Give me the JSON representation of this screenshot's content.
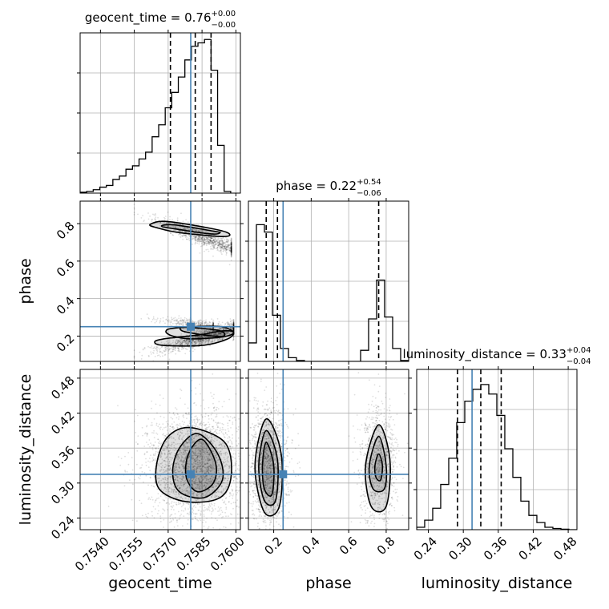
{
  "colors": {
    "truth": "#4682b4",
    "hist": "#000000",
    "grid": "#b0b0b0",
    "scatter": "#000000"
  },
  "chart_data": {
    "type": "corner",
    "parameters": [
      {
        "key": "geocent_time",
        "label": "geocent_time",
        "title_text": "geocent_time = 0.76",
        "title_sup": "+0.00",
        "title_sub": "−0.00",
        "range": [
          0.7531,
          0.7602
        ],
        "ticks": [
          0.754,
          0.7555,
          0.757,
          0.7585,
          0.76
        ],
        "tick_labels": [
          "0.7540",
          "0.7555",
          "0.7570",
          "0.7585",
          "0.7600"
        ],
        "truth": 0.758,
        "quantiles": [
          0.7571,
          0.7582,
          0.7589
        ],
        "hist": {
          "edges": [
            0.7531,
            0.75339,
            0.75368,
            0.75397,
            0.75426,
            0.75455,
            0.75484,
            0.75513,
            0.75542,
            0.75571,
            0.756,
            0.75629,
            0.75658,
            0.75687,
            0.75716,
            0.75745,
            0.75774,
            0.75803,
            0.75832,
            0.75861,
            0.7589,
            0.75919,
            0.75948,
            0.75977
          ],
          "counts": [
            0.005,
            0.01,
            0.02,
            0.035,
            0.045,
            0.08,
            0.1,
            0.14,
            0.16,
            0.2,
            0.24,
            0.33,
            0.4,
            0.5,
            0.59,
            0.68,
            0.78,
            0.86,
            0.88,
            0.9,
            0.72,
            0.28,
            0.01
          ]
        }
      },
      {
        "key": "phase",
        "label": "phase",
        "title_text": "phase = 0.22",
        "title_sup": "+0.54",
        "title_sub": "−0.06",
        "range": [
          0.065,
          0.92
        ],
        "ticks": [
          0.2,
          0.4,
          0.6,
          0.8
        ],
        "tick_labels": [
          "0.2",
          "0.4",
          "0.6",
          "0.8"
        ],
        "truth": 0.25,
        "quantiles": [
          0.16,
          0.22,
          0.76
        ],
        "hist": {
          "edges": [
            0.065,
            0.1077,
            0.1505,
            0.1932,
            0.236,
            0.2787,
            0.3215,
            0.3642,
            0.407,
            0.4497,
            0.4925,
            0.5352,
            0.578,
            0.6207,
            0.6635,
            0.7062,
            0.749,
            0.7917,
            0.8345,
            0.8772,
            0.92
          ],
          "counts": [
            0.1,
            0.74,
            0.7,
            0.25,
            0.07,
            0.02,
            0.005,
            0,
            0,
            0,
            0,
            0,
            0,
            0,
            0.06,
            0.23,
            0.44,
            0.24,
            0.07,
            0.005
          ]
        }
      },
      {
        "key": "luminosity_distance",
        "label": "luminosity_distance",
        "title_text": "luminosity_distance = 0.33",
        "title_sup": "+0.04",
        "title_sub": "−0.04",
        "range": [
          0.22,
          0.495
        ],
        "ticks": [
          0.24,
          0.3,
          0.36,
          0.42,
          0.48
        ],
        "tick_labels": [
          "0.24",
          "0.30",
          "0.36",
          "0.42",
          "0.48"
        ],
        "truth": 0.315,
        "quantiles": [
          0.29,
          0.33,
          0.365
        ],
        "hist": {
          "edges": [
            0.22,
            0.2337,
            0.2475,
            0.2612,
            0.275,
            0.2887,
            0.3025,
            0.3162,
            0.33,
            0.3437,
            0.3575,
            0.3712,
            0.385,
            0.3987,
            0.4125,
            0.4262,
            0.44,
            0.4537,
            0.4675,
            0.4812,
            0.495
          ],
          "counts": [
            0.01,
            0.04,
            0.09,
            0.19,
            0.3,
            0.45,
            0.54,
            0.59,
            0.61,
            0.57,
            0.48,
            0.34,
            0.22,
            0.12,
            0.06,
            0.03,
            0.01,
            0.005,
            0.002,
            0
          ]
        }
      }
    ],
    "pairs": [
      {
        "x": "geocent_time",
        "y": "phase",
        "modes": [
          {
            "type": "band",
            "x0": 0.7555,
            "y0": 0.86,
            "x1": 0.7598,
            "y1": 0.67,
            "sigma_along": 0.2,
            "sigma_perp": 0.022,
            "weight": 0.42
          },
          {
            "type": "band",
            "x0": 0.7555,
            "y0": 0.09,
            "x1": 0.7599,
            "y1": 0.24,
            "sigma_along": 0.2,
            "sigma_perp": 0.02,
            "weight": 0.58
          },
          {
            "type": "band",
            "x0": 0.7558,
            "y0": 0.3,
            "x1": 0.759,
            "y1": 0.255,
            "sigma_along": 0.2,
            "sigma_perp": 0.012,
            "weight": 0.12
          }
        ],
        "contours": [
          [
            [
              0.7573,
              0.793
            ],
            [
              0.759,
              0.76
            ],
            [
              0.7593,
              0.752
            ],
            [
              0.7589,
              0.745
            ],
            [
              0.7573,
              0.772
            ],
            [
              0.7567,
              0.787
            ]
          ],
          [
            [
              0.7569,
              0.812
            ],
            [
              0.759,
              0.772
            ],
            [
              0.7597,
              0.747
            ],
            [
              0.7594,
              0.731
            ],
            [
              0.7575,
              0.752
            ],
            [
              0.7565,
              0.778
            ],
            [
              0.7562,
              0.795
            ]
          ],
          [
            [
              0.7577,
              0.247
            ],
            [
              0.7592,
              0.231
            ],
            [
              0.7595,
              0.205
            ],
            [
              0.7591,
              0.199
            ],
            [
              0.7581,
              0.215
            ],
            [
              0.7576,
              0.229
            ]
          ],
          [
            [
              0.7573,
              0.243
            ],
            [
              0.7592,
              0.252
            ],
            [
              0.7599,
              0.22
            ],
            [
              0.7594,
              0.196
            ],
            [
              0.758,
              0.185
            ],
            [
              0.7572,
              0.2
            ],
            [
              0.7569,
              0.225
            ]
          ],
          [
            [
              0.7568,
              0.185
            ],
            [
              0.7584,
              0.207
            ],
            [
              0.7594,
              0.228
            ],
            [
              0.7599,
              0.22
            ],
            [
              0.7596,
              0.183
            ],
            [
              0.7585,
              0.15
            ],
            [
              0.7568,
              0.15
            ],
            [
              0.7564,
              0.168
            ]
          ]
        ]
      },
      {
        "x": "geocent_time",
        "y": "luminosity_distance",
        "modes": [
          {
            "type": "gauss",
            "mx": 0.7582,
            "my": 0.33,
            "sx": 0.00085,
            "sy": 0.038,
            "weight": 1.0
          }
        ],
        "contours": [
          [
            [
              0.7585,
              0.375
            ],
            [
              0.7591,
              0.335
            ],
            [
              0.759,
              0.3
            ],
            [
              0.7583,
              0.285
            ],
            [
              0.7578,
              0.31
            ],
            [
              0.7579,
              0.35
            ]
          ],
          [
            [
              0.7583,
              0.385
            ],
            [
              0.7592,
              0.35
            ],
            [
              0.7594,
              0.305
            ],
            [
              0.7586,
              0.275
            ],
            [
              0.7575,
              0.285
            ],
            [
              0.7572,
              0.32
            ],
            [
              0.7575,
              0.36
            ]
          ],
          [
            [
              0.758,
              0.395
            ],
            [
              0.7595,
              0.37
            ],
            [
              0.7598,
              0.315
            ],
            [
              0.7593,
              0.275
            ],
            [
              0.7578,
              0.268
            ],
            [
              0.7566,
              0.29
            ],
            [
              0.7565,
              0.335
            ],
            [
              0.757,
              0.38
            ]
          ]
        ]
      },
      {
        "x": "phase",
        "y": "luminosity_distance",
        "modes": [
          {
            "type": "gauss",
            "mx": 0.175,
            "my": 0.33,
            "sx": 0.04,
            "sy": 0.04,
            "weight": 0.62
          },
          {
            "type": "gauss",
            "mx": 0.76,
            "my": 0.33,
            "sx": 0.04,
            "sy": 0.04,
            "weight": 0.38
          }
        ],
        "contours": [
          [
            [
              0.16,
              0.37
            ],
            [
              0.2,
              0.33
            ],
            [
              0.19,
              0.28
            ],
            [
              0.15,
              0.29
            ],
            [
              0.14,
              0.33
            ]
          ],
          [
            [
              0.16,
              0.39
            ],
            [
              0.22,
              0.34
            ],
            [
              0.21,
              0.27
            ],
            [
              0.15,
              0.27
            ],
            [
              0.12,
              0.33
            ]
          ],
          [
            [
              0.16,
              0.41
            ],
            [
              0.24,
              0.35
            ],
            [
              0.23,
              0.26
            ],
            [
              0.15,
              0.25
            ],
            [
              0.1,
              0.33
            ]
          ],
          [
            [
              0.76,
              0.35
            ],
            [
              0.78,
              0.33
            ],
            [
              0.77,
              0.305
            ],
            [
              0.745,
              0.31
            ],
            [
              0.74,
              0.33
            ]
          ],
          [
            [
              0.76,
              0.38
            ],
            [
              0.8,
              0.33
            ],
            [
              0.79,
              0.29
            ],
            [
              0.73,
              0.29
            ],
            [
              0.71,
              0.33
            ]
          ],
          [
            [
              0.76,
              0.4
            ],
            [
              0.82,
              0.34
            ],
            [
              0.8,
              0.26
            ],
            [
              0.72,
              0.26
            ],
            [
              0.69,
              0.33
            ]
          ]
        ]
      }
    ],
    "truth_point": {
      "geocent_time": 0.758,
      "phase": 0.25,
      "luminosity_distance": 0.315
    }
  }
}
